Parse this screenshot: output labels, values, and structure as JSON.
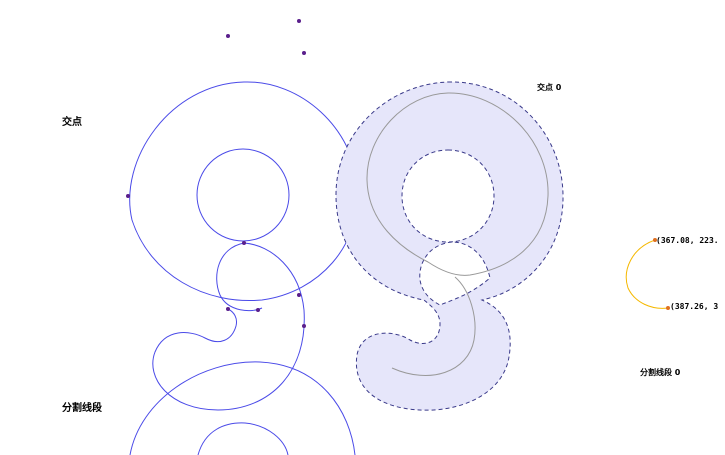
{
  "labels": {
    "left_intersection": "交点",
    "left_split": "分割线段",
    "right_intersection": "交点 0",
    "right_split": "分割线段 0"
  },
  "coords": {
    "arc_start": "(367.08, 223.",
    "arc_end": "(387.26, 3"
  },
  "colors": {
    "outline_blue": "#4a4ae8",
    "point_purple": "#5a1f8c",
    "fill_lavender": "#e6e6fa",
    "dash_navy": "#3a3a8a",
    "skeleton_gray": "#999999",
    "arc_orange": "#f5b800"
  }
}
